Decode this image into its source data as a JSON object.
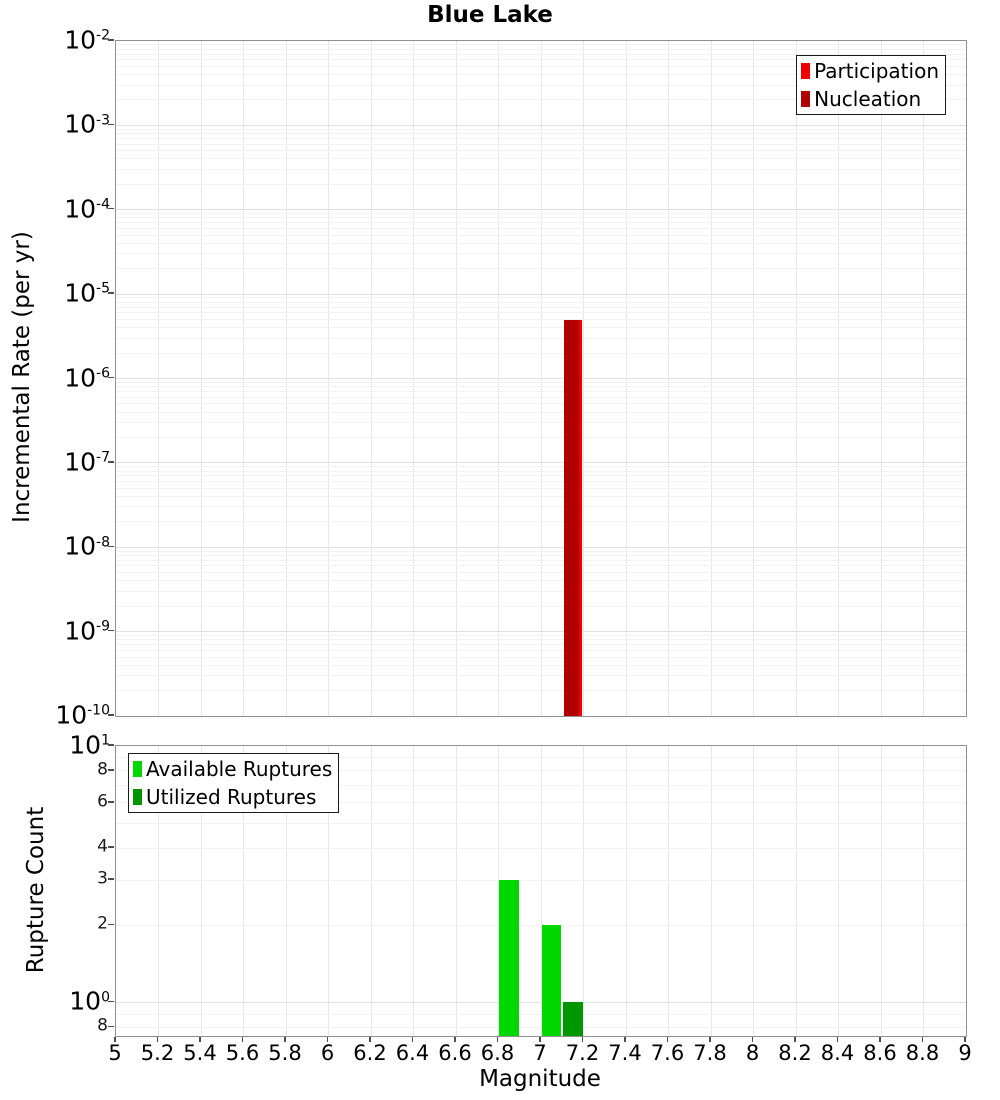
{
  "title": "Blue Lake",
  "colors": {
    "participation": "#ee0000",
    "nucleation": "#b00000",
    "available": "#00d800",
    "utilized": "#009600",
    "grid_major": "#e1e1e1",
    "grid_minor": "#f2f2f2",
    "spine": "#909090"
  },
  "axes": {
    "magnitude_label": "Magnitude",
    "rate_label": "Incremental Rate (per yr)",
    "count_label": "Rupture Count"
  },
  "chart_data": [
    {
      "type": "bar",
      "title": "Blue Lake",
      "xlabel": "Magnitude",
      "ylabel": "Incremental Rate (per yr)",
      "xscale": "linear",
      "yscale": "log",
      "xlim": [
        5,
        9
      ],
      "ylim": [
        1e-10,
        0.01
      ],
      "grid": true,
      "legend_position": "top-right",
      "series": [
        {
          "name": "Participation",
          "color_key": "participation",
          "x": [
            7.15
          ],
          "values": [
            4.9e-06
          ]
        },
        {
          "name": "Nucleation",
          "color_key": "nucleation",
          "x": [
            7.15
          ],
          "values": [
            4.9e-06
          ]
        }
      ],
      "yticks": [
        {
          "v": 0.01,
          "base": "10",
          "sup": "-2"
        },
        {
          "v": 0.001,
          "base": "10",
          "sup": "-3"
        },
        {
          "v": 0.0001,
          "base": "10",
          "sup": "-4"
        },
        {
          "v": 1e-05,
          "base": "10",
          "sup": "-5"
        },
        {
          "v": 1e-06,
          "base": "10",
          "sup": "-6"
        },
        {
          "v": 1e-07,
          "base": "10",
          "sup": "-7"
        },
        {
          "v": 1e-08,
          "base": "10",
          "sup": "-8"
        },
        {
          "v": 1e-09,
          "base": "10",
          "sup": "-9"
        },
        {
          "v": 1e-10,
          "base": "10",
          "sup": "-10"
        }
      ]
    },
    {
      "type": "bar",
      "xlabel": "Magnitude",
      "ylabel": "Rupture Count",
      "xscale": "linear",
      "yscale": "log",
      "xlim": [
        5,
        9
      ],
      "ylim": [
        0.74,
        10
      ],
      "grid": true,
      "legend_position": "top-left",
      "series": [
        {
          "name": "Available Ruptures",
          "color_key": "available",
          "x": [
            6.85,
            7.05
          ],
          "values": [
            3,
            2
          ]
        },
        {
          "name": "Utilized Ruptures",
          "color_key": "utilized",
          "x": [
            7.15
          ],
          "values": [
            1
          ]
        }
      ],
      "yticks_major": [
        {
          "v": 10,
          "base": "10",
          "sup": "1"
        },
        {
          "v": 1,
          "base": "10",
          "sup": "0"
        }
      ],
      "yticks_minor": [
        {
          "v": 8,
          "label": "8"
        },
        {
          "v": 6,
          "label": "6"
        },
        {
          "v": 4,
          "label": "4"
        },
        {
          "v": 3,
          "label": "3"
        },
        {
          "v": 2,
          "label": "2"
        },
        {
          "v": 0.8,
          "label": "8"
        }
      ],
      "xticks": [
        {
          "v": 5,
          "label": "5"
        },
        {
          "v": 5.2,
          "label": "5.2"
        },
        {
          "v": 5.4,
          "label": "5.4"
        },
        {
          "v": 5.6,
          "label": "5.6"
        },
        {
          "v": 5.8,
          "label": "5.8"
        },
        {
          "v": 6,
          "label": "6"
        },
        {
          "v": 6.2,
          "label": "6.2"
        },
        {
          "v": 6.4,
          "label": "6.4"
        },
        {
          "v": 6.6,
          "label": "6.6"
        },
        {
          "v": 6.8,
          "label": "6.8"
        },
        {
          "v": 7,
          "label": "7"
        },
        {
          "v": 7.2,
          "label": "7.2"
        },
        {
          "v": 7.4,
          "label": "7.4"
        },
        {
          "v": 7.6,
          "label": "7.6"
        },
        {
          "v": 7.8,
          "label": "7.8"
        },
        {
          "v": 8,
          "label": "8"
        },
        {
          "v": 8.2,
          "label": "8.2"
        },
        {
          "v": 8.4,
          "label": "8.4"
        },
        {
          "v": 8.6,
          "label": "8.6"
        },
        {
          "v": 8.8,
          "label": "8.8"
        },
        {
          "v": 9,
          "label": "9"
        }
      ]
    }
  ],
  "legend_top": {
    "entries": [
      {
        "label": "Participation",
        "color_key": "participation"
      },
      {
        "label": "Nucleation",
        "color_key": "nucleation"
      }
    ]
  },
  "legend_bottom": {
    "entries": [
      {
        "label": "Available Ruptures",
        "color_key": "available"
      },
      {
        "label": "Utilized Ruptures",
        "color_key": "utilized"
      }
    ]
  }
}
